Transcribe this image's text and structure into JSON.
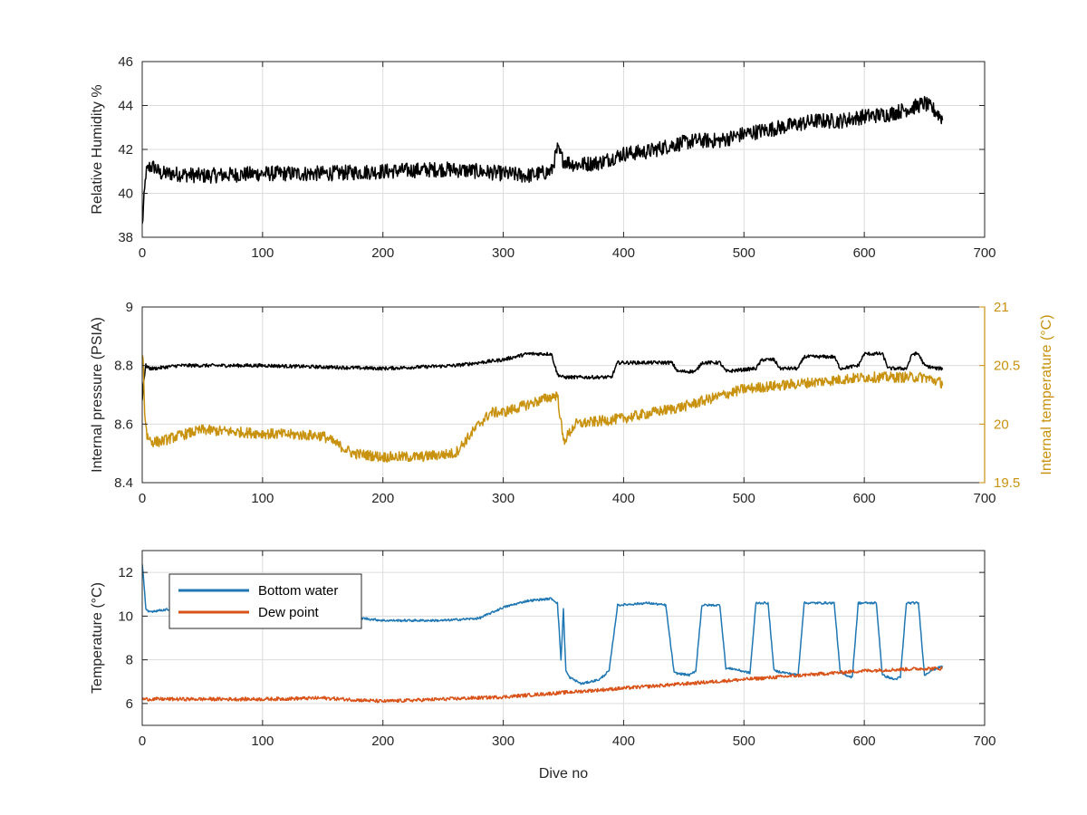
{
  "chart_data": [
    {
      "type": "line",
      "panel": "top",
      "ylabel": "Relative Humidity %",
      "xlabel": "",
      "xlim": [
        0,
        700
      ],
      "ylim": [
        38,
        46
      ],
      "xticks": [
        0,
        100,
        200,
        300,
        400,
        500,
        600,
        700
      ],
      "yticks": [
        38,
        40,
        42,
        44,
        46
      ],
      "grid": true,
      "series": [
        {
          "color": "#000000",
          "noise": 0.35,
          "x": [
            0,
            1,
            3,
            6,
            10,
            15,
            25,
            50,
            100,
            150,
            200,
            250,
            280,
            300,
            320,
            340,
            345,
            350,
            360,
            380,
            400,
            420,
            440,
            460,
            480,
            500,
            520,
            540,
            560,
            580,
            600,
            620,
            640,
            650,
            660,
            665
          ],
          "y": [
            38.5,
            39.3,
            40.9,
            41.2,
            41.2,
            40.9,
            40.9,
            40.8,
            40.9,
            40.9,
            41.0,
            41.1,
            41.0,
            40.9,
            40.8,
            41.0,
            42.0,
            41.5,
            41.3,
            41.4,
            41.8,
            41.9,
            42.2,
            42.4,
            42.4,
            42.7,
            42.9,
            43.1,
            43.3,
            43.3,
            43.5,
            43.6,
            43.9,
            44.1,
            43.7,
            43.4
          ]
        }
      ]
    },
    {
      "type": "line",
      "panel": "middle",
      "ylabel": "Internal pressure (PSIA)",
      "ylabel_right": "Internal temperature (°C)",
      "xlabel": "",
      "xlim": [
        0,
        700
      ],
      "ylim": [
        8.4,
        9.0
      ],
      "ylim_right": [
        19.5,
        21.0
      ],
      "xticks": [
        0,
        100,
        200,
        300,
        400,
        500,
        600,
        700
      ],
      "yticks": [
        8.4,
        8.6,
        8.8,
        9.0
      ],
      "yticks_right": [
        19.5,
        20.0,
        20.5,
        21.0
      ],
      "yticklabels_right": [
        "19.5",
        "20",
        "20.5",
        "21"
      ],
      "right_axis_color": "#c8920e",
      "grid": true,
      "series": [
        {
          "axis": "left",
          "color": "#000000",
          "noise": 0.006,
          "x": [
            0,
            1,
            3,
            6,
            10,
            30,
            100,
            200,
            260,
            280,
            300,
            310,
            320,
            340,
            345,
            350,
            390,
            395,
            440,
            445,
            460,
            465,
            480,
            485,
            510,
            515,
            525,
            530,
            545,
            550,
            575,
            580,
            595,
            600,
            615,
            620,
            635,
            640,
            645,
            650,
            660,
            665
          ],
          "y": [
            8.68,
            8.74,
            8.8,
            8.79,
            8.79,
            8.8,
            8.8,
            8.79,
            8.8,
            8.81,
            8.82,
            8.83,
            8.84,
            8.84,
            8.77,
            8.76,
            8.76,
            8.81,
            8.81,
            8.78,
            8.78,
            8.81,
            8.81,
            8.78,
            8.79,
            8.82,
            8.82,
            8.79,
            8.79,
            8.83,
            8.83,
            8.79,
            8.8,
            8.84,
            8.84,
            8.79,
            8.79,
            8.84,
            8.84,
            8.8,
            8.79,
            8.79
          ]
        },
        {
          "axis": "right",
          "color": "#c8920e",
          "noise": 0.045,
          "x": [
            0,
            1,
            2,
            4,
            8,
            15,
            30,
            50,
            100,
            150,
            175,
            200,
            230,
            260,
            280,
            290,
            300,
            330,
            345,
            350,
            360,
            400,
            450,
            500,
            550,
            600,
            650,
            665
          ],
          "y": [
            20.6,
            20.5,
            20.1,
            19.9,
            19.85,
            19.85,
            19.9,
            19.95,
            19.92,
            19.9,
            19.75,
            19.72,
            19.72,
            19.75,
            20.0,
            20.1,
            20.1,
            20.2,
            20.25,
            19.85,
            20.0,
            20.05,
            20.15,
            20.3,
            20.35,
            20.4,
            20.4,
            20.35
          ]
        }
      ]
    },
    {
      "type": "line",
      "panel": "bottom",
      "ylabel": "Temperature (°C)",
      "xlabel": "Dive no",
      "xlim": [
        0,
        700
      ],
      "ylim": [
        5,
        13
      ],
      "xticks": [
        0,
        100,
        200,
        300,
        400,
        500,
        600,
        700
      ],
      "yticks": [
        6,
        8,
        10,
        12
      ],
      "grid": true,
      "legend_position": "top-left",
      "series": [
        {
          "name": "Bottom water",
          "color": "#1f77b4",
          "noise": 0.05,
          "x": [
            0,
            1,
            3,
            5,
            20,
            50,
            100,
            150,
            200,
            250,
            280,
            300,
            320,
            340,
            345,
            348,
            350,
            352,
            355,
            365,
            380,
            388,
            395,
            420,
            435,
            442,
            455,
            460,
            465,
            480,
            485,
            490,
            505,
            510,
            520,
            525,
            535,
            545,
            550,
            575,
            580,
            590,
            595,
            610,
            615,
            625,
            630,
            635,
            645,
            650,
            655,
            665
          ],
          "y": [
            12.4,
            11.8,
            10.3,
            10.2,
            10.3,
            10.3,
            10.2,
            10.1,
            9.8,
            9.8,
            9.9,
            10.4,
            10.7,
            10.8,
            10.6,
            8.0,
            10.3,
            7.5,
            7.2,
            6.9,
            7.1,
            7.5,
            10.5,
            10.6,
            10.5,
            7.4,
            7.3,
            7.5,
            10.5,
            10.5,
            7.6,
            7.6,
            7.4,
            10.6,
            10.6,
            7.5,
            7.4,
            7.3,
            10.6,
            10.6,
            7.4,
            7.2,
            10.6,
            10.6,
            7.3,
            7.1,
            7.2,
            10.6,
            10.6,
            7.3,
            7.5,
            7.7
          ]
        },
        {
          "name": "Dew point",
          "color": "#d95319",
          "noise": 0.08,
          "x": [
            0,
            50,
            100,
            150,
            200,
            250,
            300,
            350,
            400,
            450,
            500,
            550,
            600,
            650,
            665
          ],
          "y": [
            6.2,
            6.2,
            6.2,
            6.25,
            6.1,
            6.2,
            6.3,
            6.5,
            6.7,
            6.9,
            7.1,
            7.3,
            7.5,
            7.6,
            7.6
          ]
        }
      ]
    }
  ]
}
